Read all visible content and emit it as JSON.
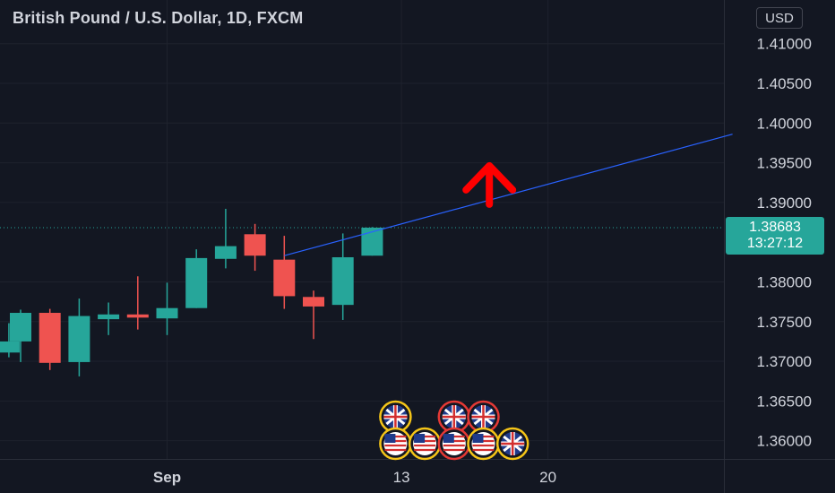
{
  "header": {
    "title": "British Pound / U.S. Dollar, 1D, FXCM",
    "currency": "USD"
  },
  "price_tag": {
    "price": "1.38683",
    "countdown": "13:27:12"
  },
  "colors": {
    "background": "#131722",
    "up": "#26a69a",
    "down": "#ef5350",
    "grid": "#1e222d",
    "trendline": "#2962ff",
    "arrow": "#ff0000",
    "event_ring_gold": "#f5c518",
    "event_ring_red": "#e53935"
  },
  "chart_data": {
    "type": "candlestick",
    "symbol": "GBPUSD",
    "interval": "1D",
    "y_ticks": [
      "1.41000",
      "1.40500",
      "1.40000",
      "1.39500",
      "1.39000",
      "1.38000",
      "1.37500",
      "1.37000",
      "1.36500",
      "1.36000"
    ],
    "x_ticks": [
      {
        "label": "Sep",
        "slot": 5
      },
      {
        "label": "13",
        "slot": 13
      },
      {
        "label": "20",
        "slot": 18
      }
    ],
    "ylim": [
      1.3577,
      1.4155
    ],
    "xlim_slots": [
      -0.5,
      24.3
    ],
    "candles": [
      {
        "slot": -0.4,
        "open": 1.3711,
        "high": 1.3748,
        "low": 1.3705,
        "close": 1.3725
      },
      {
        "slot": 0,
        "open": 1.3725,
        "high": 1.3765,
        "low": 1.3699,
        "close": 1.3761
      },
      {
        "slot": 1,
        "open": 1.3761,
        "high": 1.3766,
        "low": 1.3689,
        "close": 1.3698
      },
      {
        "slot": 2,
        "open": 1.3699,
        "high": 1.3779,
        "low": 1.3681,
        "close": 1.3757
      },
      {
        "slot": 3,
        "open": 1.3753,
        "high": 1.3774,
        "low": 1.3733,
        "close": 1.3759
      },
      {
        "slot": 4,
        "open": 1.3759,
        "high": 1.3807,
        "low": 1.374,
        "close": 1.3755
      },
      {
        "slot": 5,
        "open": 1.3754,
        "high": 1.3799,
        "low": 1.3733,
        "close": 1.3767
      },
      {
        "slot": 6,
        "open": 1.3767,
        "high": 1.3841,
        "low": 1.3767,
        "close": 1.383
      },
      {
        "slot": 7,
        "open": 1.3829,
        "high": 1.3892,
        "low": 1.3817,
        "close": 1.3845
      },
      {
        "slot": 8,
        "open": 1.386,
        "high": 1.3873,
        "low": 1.3814,
        "close": 1.3833
      },
      {
        "slot": 9,
        "open": 1.3828,
        "high": 1.3858,
        "low": 1.3766,
        "close": 1.3782
      },
      {
        "slot": 10,
        "open": 1.3781,
        "high": 1.3789,
        "low": 1.3728,
        "close": 1.3769
      },
      {
        "slot": 11,
        "open": 1.3771,
        "high": 1.3861,
        "low": 1.3752,
        "close": 1.3831
      },
      {
        "slot": 12,
        "open": 1.3833,
        "high": 1.3869,
        "low": 1.3833,
        "close": 1.38683
      }
    ],
    "current_price": 1.38683,
    "trendline": {
      "start": {
        "slot": 9,
        "price": 1.3833
      },
      "end": {
        "slot": 24.3,
        "price": 1.3986
      }
    },
    "arrow": {
      "slot": 16,
      "price": 1.3935,
      "direction": "up"
    },
    "events": [
      {
        "slot": 12.0,
        "row": 1,
        "flag": "uk",
        "ring": "gold"
      },
      {
        "slot": 14.0,
        "row": 1,
        "flag": "uk",
        "ring": "red"
      },
      {
        "slot": 15.0,
        "row": 1,
        "flag": "uk",
        "ring": "red"
      },
      {
        "slot": 12.0,
        "row": 2,
        "flag": "us",
        "ring": "gold"
      },
      {
        "slot": 13.0,
        "row": 2,
        "flag": "us",
        "ring": "gold"
      },
      {
        "slot": 14.0,
        "row": 2,
        "flag": "us",
        "ring": "red"
      },
      {
        "slot": 15.0,
        "row": 2,
        "flag": "us",
        "ring": "gold"
      },
      {
        "slot": 16.0,
        "row": 2,
        "flag": "uk",
        "ring": "gold"
      }
    ]
  }
}
